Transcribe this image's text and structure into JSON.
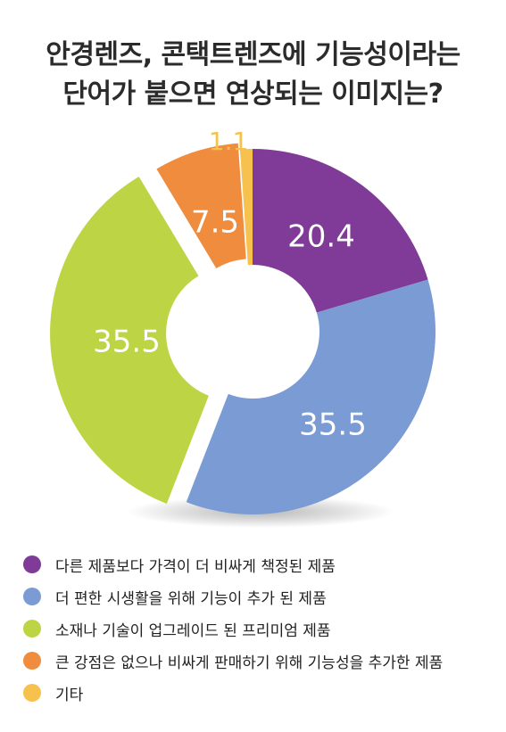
{
  "chart_data": {
    "type": "pie",
    "title": "안경렌즈, 콘택트렌즈에 기능성이라는 단어가 붙으면 연상되는 이미지는?",
    "title_lines": [
      "안경렌즈, 콘택트렌즈에 기능성이라는",
      "단어가 붙으면 연상되는 이미지는?"
    ],
    "donut": true,
    "legend_position": "bottom-left",
    "slices": [
      {
        "label": "다른 제품보다 가격이 더 비싸게 책정된 제품",
        "value": 20.4,
        "value_text": "20.4",
        "color": "#7f3b97",
        "label_color": "#ffffff"
      },
      {
        "label": "더 편한 시생활을 위해 기능이 추가 된 제품",
        "value": 35.5,
        "value_text": "35.5",
        "color": "#7a9bd3",
        "label_color": "#ffffff"
      },
      {
        "label": "소재나 기술이 업그레이드 된 프리미엄 제품",
        "value": 35.5,
        "value_text": "35.5",
        "color": "#bdd544",
        "label_color": "#ffffff"
      },
      {
        "label": "큰 강점은 없으나 비싸게 판매하기 위해 기능성을 추가한 제품",
        "value": 7.5,
        "value_text": "7.5",
        "color": "#ef8c3e",
        "label_color": "#ffffff"
      },
      {
        "label": "기타",
        "value": 1.1,
        "value_text": "1.1",
        "color": "#f7c14d",
        "label_color": "#f7c14d"
      }
    ]
  }
}
